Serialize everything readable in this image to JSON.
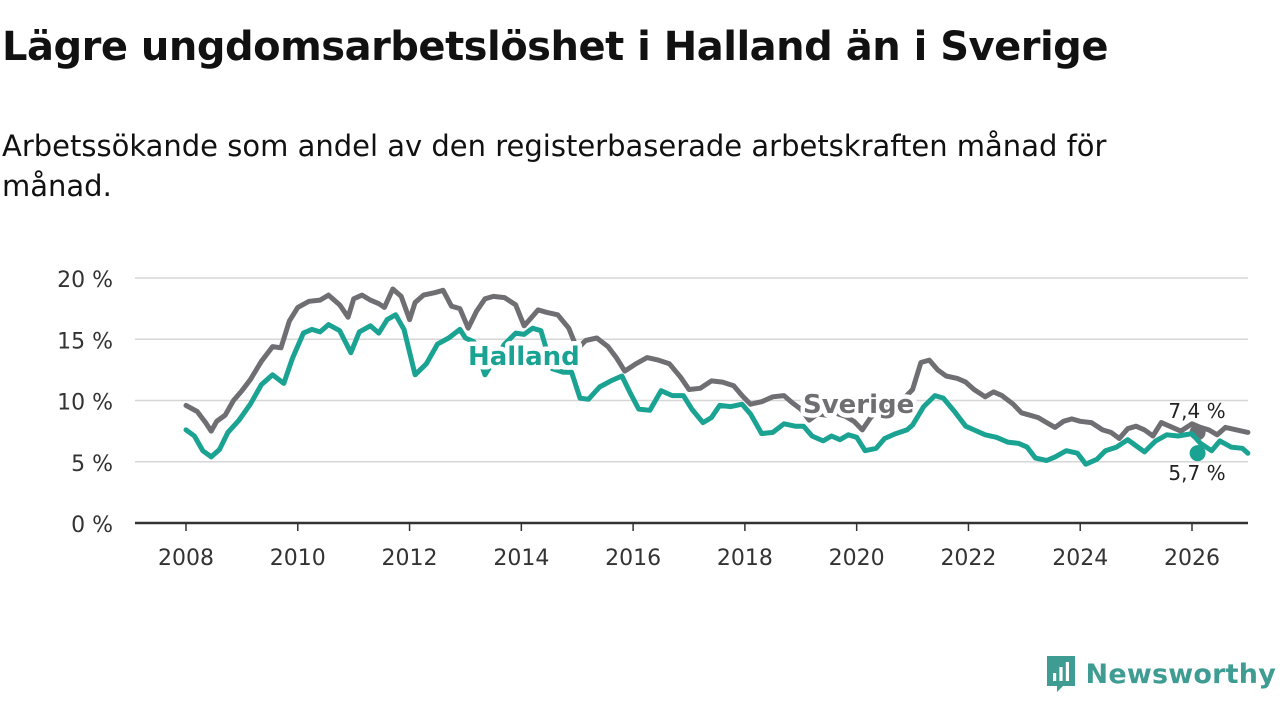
{
  "header": {
    "title": "Lägre ungdomsarbetslöshet i Halland än i Sverige",
    "subtitle": "Arbetssökande som andel av den registerbaserade arbetskraften månad för månad."
  },
  "brand": {
    "name": "Newsworthy",
    "icon": "newsworthy-logo-icon",
    "color": "#3e9c93"
  },
  "chart_data": {
    "type": "line",
    "title": "Lägre ungdomsarbetslöshet i Halland än i Sverige",
    "subtitle": "Arbetssökande som andel av den registerbaserade arbetskraften månad för månad.",
    "xlabel": "",
    "ylabel": "",
    "xlim": [
      2007.5,
      2027.0
    ],
    "ylim": [
      0,
      20
    ],
    "x_ticks": [
      2008,
      2010,
      2012,
      2014,
      2016,
      2018,
      2020,
      2022,
      2024,
      2026
    ],
    "x_tick_labels": [
      "2008",
      "2010",
      "2012",
      "2014",
      "2016",
      "2018",
      "2020",
      "2022",
      "2024",
      "2026"
    ],
    "y_ticks": [
      0,
      5,
      10,
      15,
      20
    ],
    "y_tick_labels": [
      "0 %",
      "5 %",
      "10 %",
      "15 %",
      "20 %"
    ],
    "grid": "horizontal",
    "series": [
      {
        "name": "Sverige",
        "color": "#6f6e73",
        "end_label": "7,4 %",
        "points": [
          [
            2008.0,
            9.6
          ],
          [
            2008.2,
            9.1
          ],
          [
            2008.35,
            8.2
          ],
          [
            2008.45,
            7.5
          ],
          [
            2008.55,
            8.3
          ],
          [
            2008.7,
            8.8
          ],
          [
            2008.85,
            10.0
          ],
          [
            2009.0,
            10.8
          ],
          [
            2009.15,
            11.7
          ],
          [
            2009.35,
            13.2
          ],
          [
            2009.55,
            14.4
          ],
          [
            2009.7,
            14.3
          ],
          [
            2009.85,
            16.5
          ],
          [
            2010.0,
            17.6
          ],
          [
            2010.2,
            18.1
          ],
          [
            2010.4,
            18.2
          ],
          [
            2010.55,
            18.6
          ],
          [
            2010.75,
            17.8
          ],
          [
            2010.9,
            16.8
          ],
          [
            2011.0,
            18.3
          ],
          [
            2011.15,
            18.6
          ],
          [
            2011.3,
            18.2
          ],
          [
            2011.45,
            17.9
          ],
          [
            2011.55,
            17.6
          ],
          [
            2011.7,
            19.1
          ],
          [
            2011.85,
            18.5
          ],
          [
            2012.0,
            16.6
          ],
          [
            2012.1,
            18.0
          ],
          [
            2012.25,
            18.6
          ],
          [
            2012.45,
            18.8
          ],
          [
            2012.6,
            19.0
          ],
          [
            2012.75,
            17.7
          ],
          [
            2012.9,
            17.5
          ],
          [
            2013.05,
            15.9
          ],
          [
            2013.2,
            17.3
          ],
          [
            2013.35,
            18.3
          ],
          [
            2013.5,
            18.5
          ],
          [
            2013.7,
            18.4
          ],
          [
            2013.9,
            17.8
          ],
          [
            2014.05,
            16.1
          ],
          [
            2014.15,
            16.6
          ],
          [
            2014.3,
            17.4
          ],
          [
            2014.45,
            17.2
          ],
          [
            2014.65,
            17.0
          ],
          [
            2014.85,
            15.9
          ],
          [
            2015.0,
            14.2
          ],
          [
            2015.15,
            14.9
          ],
          [
            2015.35,
            15.1
          ],
          [
            2015.55,
            14.4
          ],
          [
            2015.7,
            13.5
          ],
          [
            2015.85,
            12.4
          ],
          [
            2016.05,
            13.0
          ],
          [
            2016.25,
            13.5
          ],
          [
            2016.45,
            13.3
          ],
          [
            2016.65,
            13.0
          ],
          [
            2016.85,
            11.9
          ],
          [
            2017.0,
            10.9
          ],
          [
            2017.2,
            11.0
          ],
          [
            2017.4,
            11.6
          ],
          [
            2017.6,
            11.5
          ],
          [
            2017.8,
            11.2
          ],
          [
            2017.95,
            10.4
          ],
          [
            2018.1,
            9.7
          ],
          [
            2018.3,
            9.9
          ],
          [
            2018.5,
            10.3
          ],
          [
            2018.7,
            10.4
          ],
          [
            2018.85,
            9.8
          ],
          [
            2019.0,
            9.3
          ],
          [
            2019.15,
            8.4
          ],
          [
            2019.3,
            8.9
          ],
          [
            2019.45,
            8.8
          ],
          [
            2019.6,
            9.0
          ],
          [
            2019.8,
            8.7
          ],
          [
            2019.95,
            8.3
          ],
          [
            2020.1,
            7.6
          ],
          [
            2020.25,
            8.6
          ],
          [
            2020.45,
            9.4
          ],
          [
            2020.7,
            9.6
          ],
          [
            2020.85,
            10.2
          ],
          [
            2021.0,
            10.9
          ],
          [
            2021.15,
            13.1
          ],
          [
            2021.3,
            13.3
          ],
          [
            2021.45,
            12.5
          ],
          [
            2021.6,
            12.0
          ],
          [
            2021.8,
            11.8
          ],
          [
            2021.95,
            11.5
          ],
          [
            2022.1,
            10.9
          ],
          [
            2022.3,
            10.3
          ],
          [
            2022.45,
            10.7
          ],
          [
            2022.6,
            10.4
          ],
          [
            2022.8,
            9.7
          ],
          [
            2022.95,
            9.0
          ],
          [
            2023.1,
            8.8
          ],
          [
            2023.25,
            8.6
          ],
          [
            2023.4,
            8.2
          ],
          [
            2023.55,
            7.8
          ],
          [
            2023.7,
            8.3
          ],
          [
            2023.85,
            8.5
          ],
          [
            2024.0,
            8.3
          ],
          [
            2024.2,
            8.2
          ],
          [
            2024.4,
            7.6
          ],
          [
            2024.55,
            7.4
          ],
          [
            2024.7,
            6.9
          ],
          [
            2024.85,
            7.7
          ],
          [
            2025.0,
            7.9
          ],
          [
            2025.15,
            7.6
          ],
          [
            2025.3,
            7.1
          ],
          [
            2025.45,
            8.2
          ],
          [
            2025.6,
            7.9
          ],
          [
            2025.8,
            7.5
          ],
          [
            2026.0,
            8.1
          ],
          [
            2026.15,
            7.8
          ],
          [
            2026.3,
            7.6
          ],
          [
            2026.45,
            7.2
          ],
          [
            2026.6,
            7.8
          ],
          [
            2026.8,
            7.6
          ],
          [
            2027.0,
            7.4
          ]
        ]
      },
      {
        "name": "Halland",
        "color": "#1aa392",
        "end_label": "5,7 %",
        "points": [
          [
            2008.0,
            7.6
          ],
          [
            2008.15,
            7.1
          ],
          [
            2008.3,
            5.9
          ],
          [
            2008.45,
            5.4
          ],
          [
            2008.6,
            6.0
          ],
          [
            2008.75,
            7.4
          ],
          [
            2008.95,
            8.4
          ],
          [
            2009.15,
            9.7
          ],
          [
            2009.35,
            11.3
          ],
          [
            2009.55,
            12.1
          ],
          [
            2009.75,
            11.4
          ],
          [
            2009.9,
            13.4
          ],
          [
            2010.1,
            15.5
          ],
          [
            2010.25,
            15.8
          ],
          [
            2010.4,
            15.6
          ],
          [
            2010.55,
            16.2
          ],
          [
            2010.75,
            15.7
          ],
          [
            2010.95,
            13.9
          ],
          [
            2011.1,
            15.6
          ],
          [
            2011.3,
            16.1
          ],
          [
            2011.45,
            15.5
          ],
          [
            2011.6,
            16.6
          ],
          [
            2011.75,
            17.0
          ],
          [
            2011.9,
            15.8
          ],
          [
            2012.1,
            12.1
          ],
          [
            2012.3,
            13.0
          ],
          [
            2012.5,
            14.6
          ],
          [
            2012.7,
            15.1
          ],
          [
            2012.9,
            15.8
          ],
          [
            2013.0,
            15.1
          ],
          [
            2013.15,
            14.8
          ],
          [
            2013.35,
            12.1
          ],
          [
            2013.5,
            13.2
          ],
          [
            2013.7,
            14.6
          ],
          [
            2013.9,
            15.5
          ],
          [
            2014.05,
            15.4
          ],
          [
            2014.2,
            15.9
          ],
          [
            2014.35,
            15.7
          ],
          [
            2014.55,
            12.6
          ],
          [
            2014.75,
            12.3
          ],
          [
            2014.9,
            12.3
          ],
          [
            2015.05,
            10.2
          ],
          [
            2015.2,
            10.1
          ],
          [
            2015.4,
            11.1
          ],
          [
            2015.6,
            11.6
          ],
          [
            2015.8,
            12.0
          ],
          [
            2015.95,
            10.6
          ],
          [
            2016.1,
            9.3
          ],
          [
            2016.3,
            9.2
          ],
          [
            2016.5,
            10.8
          ],
          [
            2016.7,
            10.4
          ],
          [
            2016.9,
            10.4
          ],
          [
            2017.05,
            9.3
          ],
          [
            2017.25,
            8.2
          ],
          [
            2017.4,
            8.6
          ],
          [
            2017.55,
            9.6
          ],
          [
            2017.75,
            9.5
          ],
          [
            2017.95,
            9.7
          ],
          [
            2018.1,
            8.9
          ],
          [
            2018.3,
            7.3
          ],
          [
            2018.5,
            7.4
          ],
          [
            2018.7,
            8.1
          ],
          [
            2018.9,
            7.9
          ],
          [
            2019.05,
            7.9
          ],
          [
            2019.2,
            7.1
          ],
          [
            2019.4,
            6.7
          ],
          [
            2019.55,
            7.1
          ],
          [
            2019.7,
            6.8
          ],
          [
            2019.85,
            7.2
          ],
          [
            2020.0,
            7.0
          ],
          [
            2020.15,
            5.9
          ],
          [
            2020.35,
            6.1
          ],
          [
            2020.5,
            6.9
          ],
          [
            2020.7,
            7.3
          ],
          [
            2020.9,
            7.6
          ],
          [
            2021.0,
            8.0
          ],
          [
            2021.2,
            9.5
          ],
          [
            2021.4,
            10.4
          ],
          [
            2021.55,
            10.2
          ],
          [
            2021.75,
            9.1
          ],
          [
            2021.95,
            7.9
          ],
          [
            2022.1,
            7.6
          ],
          [
            2022.3,
            7.2
          ],
          [
            2022.5,
            7.0
          ],
          [
            2022.7,
            6.6
          ],
          [
            2022.9,
            6.5
          ],
          [
            2023.05,
            6.2
          ],
          [
            2023.2,
            5.3
          ],
          [
            2023.4,
            5.1
          ],
          [
            2023.55,
            5.4
          ],
          [
            2023.75,
            5.9
          ],
          [
            2023.95,
            5.7
          ],
          [
            2024.1,
            4.8
          ],
          [
            2024.3,
            5.2
          ],
          [
            2024.45,
            5.9
          ],
          [
            2024.65,
            6.2
          ],
          [
            2024.85,
            6.8
          ],
          [
            2025.0,
            6.3
          ],
          [
            2025.15,
            5.8
          ],
          [
            2025.35,
            6.7
          ],
          [
            2025.55,
            7.2
          ],
          [
            2025.75,
            7.1
          ],
          [
            2026.0,
            7.3
          ],
          [
            2026.15,
            6.5
          ],
          [
            2026.35,
            5.9
          ],
          [
            2026.5,
            6.7
          ],
          [
            2026.7,
            6.2
          ],
          [
            2026.9,
            6.1
          ],
          [
            2027.0,
            5.7
          ]
        ]
      }
    ],
    "annotations": [
      {
        "text": "Halland",
        "series": "Halland",
        "x": 2013.3,
        "y": 13.5,
        "anchor": "start"
      },
      {
        "text": "Sverige",
        "series": "Sverige",
        "x": 2019.95,
        "y": 9.6,
        "anchor": "start"
      }
    ]
  }
}
